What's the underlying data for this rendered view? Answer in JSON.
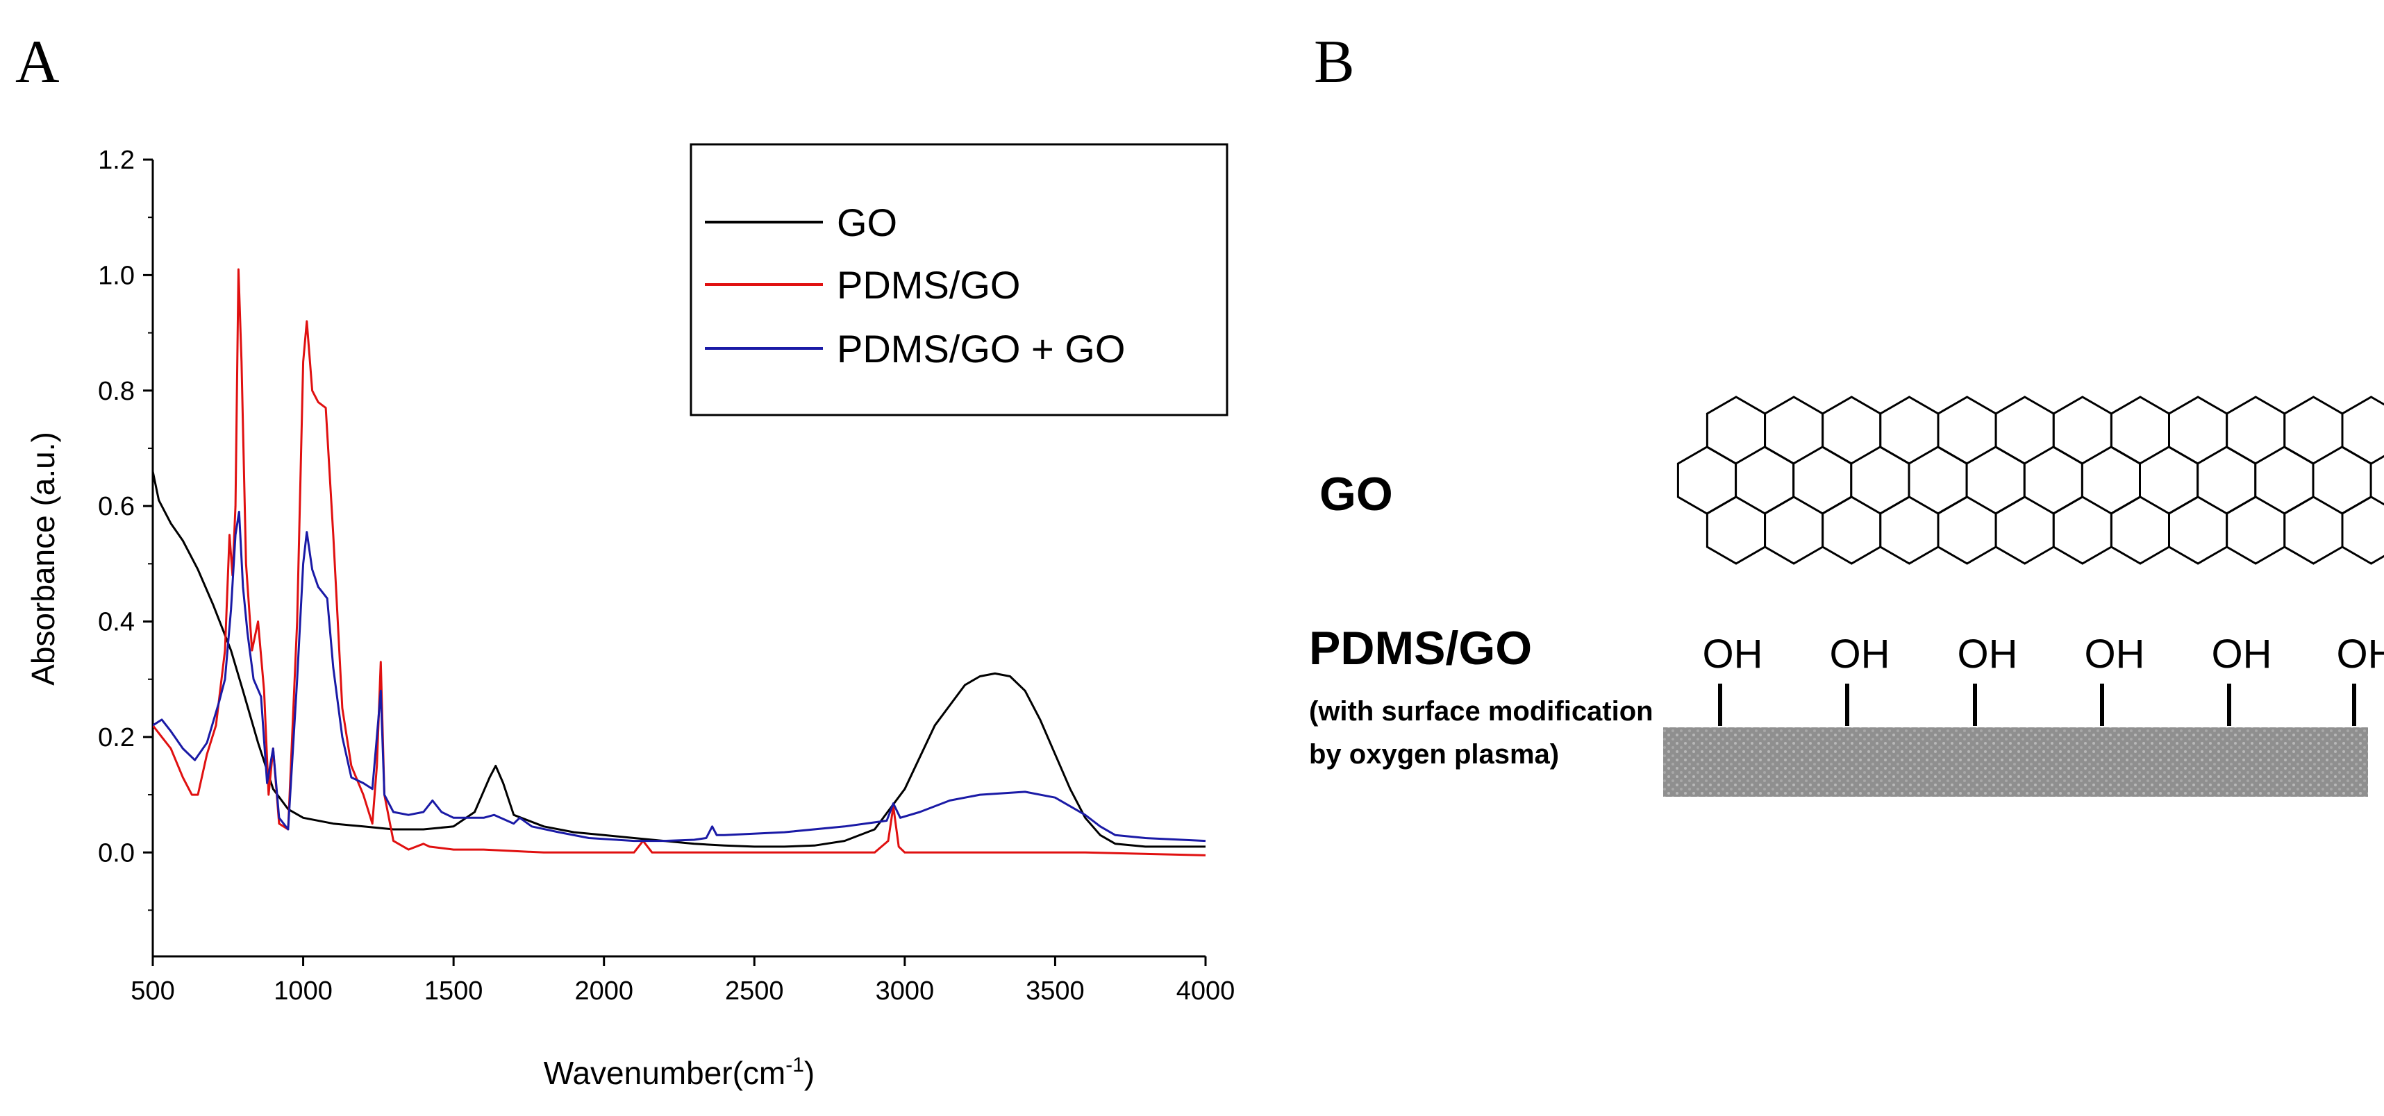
{
  "panels": {
    "a_label": "A",
    "b_label": "B"
  },
  "chart_data": {
    "type": "line",
    "title": "",
    "xlabel": "Wavenumber(cm",
    "xlabel_sup": "-1",
    "xlabel_tail": ")",
    "ylabel": "Absorbance (a.u.)",
    "xlim": [
      500,
      4000
    ],
    "ylim": [
      -0.18,
      1.2
    ],
    "x_ticks": [
      "500",
      "1000",
      "1500",
      "2000",
      "2500",
      "3000",
      "3500",
      "4000"
    ],
    "y_ticks": [
      "0.0",
      "0.2",
      "0.4",
      "0.6",
      "0.8",
      "1.0",
      "1.2"
    ],
    "legend_position": "top-right",
    "series": [
      {
        "name": "GO",
        "color": "#000000",
        "points": [
          [
            500,
            0.66
          ],
          [
            520,
            0.61
          ],
          [
            560,
            0.57
          ],
          [
            600,
            0.54
          ],
          [
            650,
            0.49
          ],
          [
            700,
            0.43
          ],
          [
            760,
            0.35
          ],
          [
            800,
            0.28
          ],
          [
            850,
            0.19
          ],
          [
            900,
            0.11
          ],
          [
            950,
            0.075
          ],
          [
            1000,
            0.06
          ],
          [
            1100,
            0.05
          ],
          [
            1200,
            0.045
          ],
          [
            1300,
            0.04
          ],
          [
            1400,
            0.04
          ],
          [
            1500,
            0.045
          ],
          [
            1570,
            0.07
          ],
          [
            1620,
            0.13
          ],
          [
            1640,
            0.15
          ],
          [
            1665,
            0.12
          ],
          [
            1700,
            0.065
          ],
          [
            1800,
            0.045
          ],
          [
            1900,
            0.035
          ],
          [
            2000,
            0.03
          ],
          [
            2100,
            0.025
          ],
          [
            2200,
            0.02
          ],
          [
            2300,
            0.015
          ],
          [
            2400,
            0.012
          ],
          [
            2500,
            0.01
          ],
          [
            2600,
            0.01
          ],
          [
            2700,
            0.012
          ],
          [
            2800,
            0.02
          ],
          [
            2900,
            0.04
          ],
          [
            3000,
            0.11
          ],
          [
            3100,
            0.22
          ],
          [
            3200,
            0.29
          ],
          [
            3250,
            0.305
          ],
          [
            3300,
            0.31
          ],
          [
            3350,
            0.305
          ],
          [
            3400,
            0.28
          ],
          [
            3450,
            0.23
          ],
          [
            3500,
            0.17
          ],
          [
            3550,
            0.11
          ],
          [
            3600,
            0.06
          ],
          [
            3650,
            0.03
          ],
          [
            3700,
            0.015
          ],
          [
            3800,
            0.01
          ],
          [
            3900,
            0.01
          ],
          [
            4000,
            0.01
          ]
        ]
      },
      {
        "name": "PDMS/GO",
        "color": "#e01010",
        "points": [
          [
            500,
            0.22
          ],
          [
            530,
            0.2
          ],
          [
            560,
            0.18
          ],
          [
            600,
            0.13
          ],
          [
            630,
            0.1
          ],
          [
            650,
            0.1
          ],
          [
            680,
            0.17
          ],
          [
            710,
            0.22
          ],
          [
            740,
            0.35
          ],
          [
            755,
            0.55
          ],
          [
            765,
            0.48
          ],
          [
            775,
            0.6
          ],
          [
            785,
            1.01
          ],
          [
            795,
            0.85
          ],
          [
            810,
            0.5
          ],
          [
            830,
            0.35
          ],
          [
            850,
            0.4
          ],
          [
            870,
            0.28
          ],
          [
            885,
            0.1
          ],
          [
            900,
            0.18
          ],
          [
            920,
            0.05
          ],
          [
            950,
            0.04
          ],
          [
            980,
            0.4
          ],
          [
            1000,
            0.85
          ],
          [
            1012,
            0.92
          ],
          [
            1030,
            0.8
          ],
          [
            1050,
            0.78
          ],
          [
            1075,
            0.77
          ],
          [
            1100,
            0.55
          ],
          [
            1130,
            0.25
          ],
          [
            1160,
            0.15
          ],
          [
            1200,
            0.1
          ],
          [
            1230,
            0.05
          ],
          [
            1245,
            0.15
          ],
          [
            1258,
            0.33
          ],
          [
            1270,
            0.1
          ],
          [
            1300,
            0.02
          ],
          [
            1350,
            0.005
          ],
          [
            1400,
            0.015
          ],
          [
            1420,
            0.01
          ],
          [
            1500,
            0.005
          ],
          [
            1600,
            0.005
          ],
          [
            1800,
            0.0
          ],
          [
            2100,
            0.0
          ],
          [
            2130,
            0.02
          ],
          [
            2160,
            0.0
          ],
          [
            2500,
            0.0
          ],
          [
            2800,
            0.0
          ],
          [
            2900,
            0.0
          ],
          [
            2945,
            0.02
          ],
          [
            2962,
            0.08
          ],
          [
            2980,
            0.01
          ],
          [
            3000,
            0.0
          ],
          [
            3200,
            0.0
          ],
          [
            3600,
            0.0
          ],
          [
            4000,
            -0.005
          ]
        ]
      },
      {
        "name": "PDMS/GO + GO",
        "color": "#1a1aa6",
        "points": [
          [
            500,
            0.22
          ],
          [
            530,
            0.23
          ],
          [
            560,
            0.21
          ],
          [
            600,
            0.18
          ],
          [
            640,
            0.16
          ],
          [
            680,
            0.19
          ],
          [
            720,
            0.26
          ],
          [
            740,
            0.3
          ],
          [
            760,
            0.42
          ],
          [
            775,
            0.55
          ],
          [
            787,
            0.59
          ],
          [
            800,
            0.46
          ],
          [
            815,
            0.38
          ],
          [
            835,
            0.3
          ],
          [
            860,
            0.27
          ],
          [
            880,
            0.12
          ],
          [
            900,
            0.18
          ],
          [
            920,
            0.06
          ],
          [
            950,
            0.04
          ],
          [
            980,
            0.3
          ],
          [
            1000,
            0.5
          ],
          [
            1012,
            0.555
          ],
          [
            1030,
            0.49
          ],
          [
            1050,
            0.46
          ],
          [
            1080,
            0.44
          ],
          [
            1100,
            0.32
          ],
          [
            1130,
            0.2
          ],
          [
            1160,
            0.13
          ],
          [
            1200,
            0.12
          ],
          [
            1230,
            0.11
          ],
          [
            1245,
            0.2
          ],
          [
            1258,
            0.28
          ],
          [
            1270,
            0.1
          ],
          [
            1300,
            0.07
          ],
          [
            1350,
            0.065
          ],
          [
            1400,
            0.07
          ],
          [
            1430,
            0.09
          ],
          [
            1460,
            0.07
          ],
          [
            1500,
            0.06
          ],
          [
            1600,
            0.06
          ],
          [
            1635,
            0.065
          ],
          [
            1700,
            0.05
          ],
          [
            1720,
            0.06
          ],
          [
            1760,
            0.045
          ],
          [
            1850,
            0.035
          ],
          [
            1950,
            0.025
          ],
          [
            2100,
            0.02
          ],
          [
            2200,
            0.02
          ],
          [
            2300,
            0.022
          ],
          [
            2340,
            0.025
          ],
          [
            2360,
            0.045
          ],
          [
            2375,
            0.03
          ],
          [
            2400,
            0.03
          ],
          [
            2600,
            0.035
          ],
          [
            2800,
            0.045
          ],
          [
            2940,
            0.055
          ],
          [
            2962,
            0.085
          ],
          [
            2985,
            0.06
          ],
          [
            3050,
            0.07
          ],
          [
            3150,
            0.09
          ],
          [
            3250,
            0.1
          ],
          [
            3400,
            0.105
          ],
          [
            3500,
            0.095
          ],
          [
            3600,
            0.065
          ],
          [
            3650,
            0.045
          ],
          [
            3700,
            0.03
          ],
          [
            3800,
            0.025
          ],
          [
            4000,
            0.02
          ]
        ]
      }
    ]
  },
  "diagram": {
    "go_label": "GO",
    "pdms_label": "PDMS/GO",
    "pdms_note_line1": "(with surface modification",
    "pdms_note_line2": "by oxygen plasma)",
    "oh_groups": [
      "OH",
      "OH",
      "OH",
      "OH",
      "OH",
      "OH"
    ],
    "substrate_color": "#8f8f8f"
  }
}
